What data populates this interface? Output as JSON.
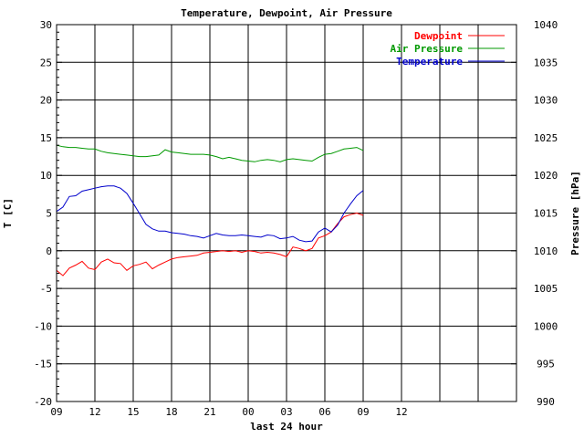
{
  "chart_data": {
    "type": "line",
    "title": "Temperature, Dewpoint, Air Pressure",
    "xlabel": "last 24 hour",
    "ylabel_left": "T [C]",
    "ylabel_right": "Pressure [hPa]",
    "ylim_left": [
      -20,
      30
    ],
    "ylim_right": [
      990,
      1040
    ],
    "xlim": [
      0,
      36
    ],
    "x_tick_values": [
      0,
      3,
      6,
      9,
      12,
      15,
      18,
      21,
      24,
      27,
      30,
      33,
      36
    ],
    "x_tick_labels": [
      "09",
      "12",
      "15",
      "18",
      "21",
      "00",
      "03",
      "06",
      "09",
      "12"
    ],
    "x_tick_label_positions": [
      0,
      3,
      6,
      9,
      12,
      15,
      18,
      21,
      24,
      27
    ],
    "y_left_ticks": [
      -20,
      -15,
      -10,
      -5,
      0,
      5,
      10,
      15,
      20,
      25,
      30
    ],
    "y_right_ticks": [
      990,
      995,
      1000,
      1005,
      1010,
      1015,
      1020,
      1025,
      1030,
      1035,
      1040
    ],
    "grid": true,
    "legend_position": "top-right",
    "series": [
      {
        "name": "Dewpoint",
        "axis": "left",
        "color": "#ff0000",
        "x": [
          0,
          0.5,
          1,
          1.5,
          2,
          2.5,
          3,
          3.5,
          4,
          4.5,
          5,
          5.5,
          6,
          6.5,
          7,
          7.5,
          8,
          8.5,
          9,
          9.5,
          10,
          10.5,
          11,
          11.5,
          12,
          12.5,
          13,
          13.5,
          14,
          14.5,
          15,
          15.5,
          16,
          16.5,
          17,
          17.5,
          18,
          18.5,
          19,
          19.5,
          20,
          20.5,
          21,
          21.5,
          22,
          22.5,
          23,
          23.5,
          24
        ],
        "y": [
          -2.6,
          -3.3,
          -2.3,
          -1.9,
          -1.4,
          -2.3,
          -2.5,
          -1.5,
          -1.1,
          -1.6,
          -1.7,
          -2.6,
          -2.0,
          -1.8,
          -1.5,
          -2.4,
          -1.9,
          -1.5,
          -1.1,
          -0.9,
          -0.8,
          -0.7,
          -0.6,
          -0.3,
          -0.2,
          -0.1,
          0.0,
          -0.1,
          0.0,
          -0.2,
          0.0,
          -0.1,
          -0.3,
          -0.2,
          -0.3,
          -0.5,
          -0.8,
          0.5,
          0.3,
          0.0,
          0.3,
          1.7,
          2.0,
          2.5,
          3.6,
          4.5,
          4.8,
          5.0,
          4.7
        ]
      },
      {
        "name": "Air Pressure",
        "axis": "right",
        "color": "#009900",
        "x": [
          0,
          0.5,
          1,
          1.5,
          2,
          2.5,
          3,
          3.5,
          4,
          4.5,
          5,
          5.5,
          6,
          6.5,
          7,
          7.5,
          8,
          8.5,
          9,
          9.5,
          10,
          10.5,
          11,
          11.5,
          12,
          12.5,
          13,
          13.5,
          14,
          14.5,
          15,
          15.5,
          16,
          16.5,
          17,
          17.5,
          18,
          18.5,
          19,
          19.5,
          20,
          20.5,
          21,
          21.5,
          22,
          22.5,
          23,
          23.5,
          24
        ],
        "y": [
          1024.0,
          1023.8,
          1023.7,
          1023.7,
          1023.6,
          1023.5,
          1023.5,
          1023.2,
          1023.0,
          1022.9,
          1022.8,
          1022.7,
          1022.6,
          1022.5,
          1022.5,
          1022.6,
          1022.7,
          1023.4,
          1023.1,
          1023.0,
          1022.9,
          1022.8,
          1022.8,
          1022.8,
          1022.7,
          1022.5,
          1022.2,
          1022.4,
          1022.2,
          1022.0,
          1021.9,
          1021.8,
          1022.0,
          1022.1,
          1022.0,
          1021.8,
          1022.1,
          1022.2,
          1022.1,
          1022.0,
          1021.9,
          1022.4,
          1022.8,
          1022.9,
          1023.2,
          1023.5,
          1023.6,
          1023.7,
          1023.3
        ]
      },
      {
        "name": "Temperature",
        "axis": "left",
        "color": "#0000cc",
        "x": [
          0,
          0.5,
          1,
          1.5,
          2,
          2.5,
          3,
          3.5,
          4,
          4.5,
          5,
          5.5,
          6,
          6.5,
          7,
          7.5,
          8,
          8.5,
          9,
          9.5,
          10,
          10.5,
          11,
          11.5,
          12,
          12.5,
          13,
          13.5,
          14,
          14.5,
          15,
          15.5,
          16,
          16.5,
          17,
          17.5,
          18,
          18.5,
          19,
          19.5,
          20,
          20.5,
          21,
          21.5,
          22,
          22.5,
          23,
          23.5,
          24
        ],
        "y": [
          5.2,
          5.8,
          7.2,
          7.3,
          7.9,
          8.1,
          8.3,
          8.5,
          8.6,
          8.6,
          8.3,
          7.6,
          6.3,
          4.9,
          3.5,
          2.9,
          2.6,
          2.6,
          2.4,
          2.3,
          2.2,
          2.0,
          1.9,
          1.7,
          2.0,
          2.3,
          2.1,
          2.0,
          2.0,
          2.1,
          2.0,
          1.9,
          1.8,
          2.1,
          2.0,
          1.6,
          1.7,
          1.9,
          1.4,
          1.2,
          1.3,
          2.5,
          3.0,
          2.5,
          3.4,
          5.0,
          6.2,
          7.3,
          8.0
        ]
      }
    ]
  }
}
